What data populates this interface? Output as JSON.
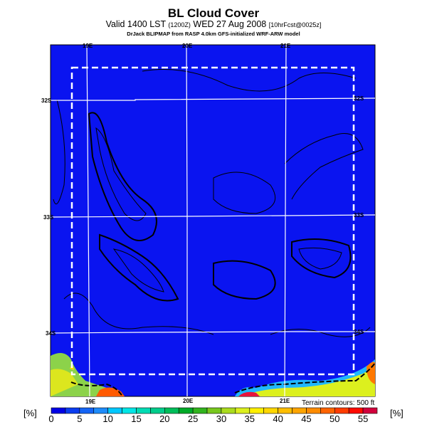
{
  "title": "BL Cloud Cover",
  "subtitle_main": "Valid 1400 LST",
  "subtitle_small1": "(1200Z)",
  "subtitle_date": "WED 27 Aug 2008",
  "subtitle_small2": "[10hrFcst@0025z]",
  "credit": "DrJack BLIPMAP from RASP 4.0km GFS-initialized WRF-ARW model",
  "terrain_note": "Terrain contours: 500 ft",
  "unit_left": "[%]",
  "unit_right": "[%]",
  "chart_data": {
    "type": "heatmap",
    "title": "BL Cloud Cover",
    "variable": "Boundary layer cloud cover",
    "units": "%",
    "lon_labels": [
      "19E",
      "20E",
      "21E"
    ],
    "lat_labels": [
      "32S",
      "33S",
      "34S"
    ],
    "colorbar": {
      "ticks": [
        "0",
        "5",
        "10",
        "15",
        "20",
        "25",
        "30",
        "35",
        "40",
        "45",
        "50",
        "55"
      ],
      "range": [
        0,
        57.5
      ],
      "step": 2.5,
      "colors": [
        "#0000e6",
        "#0a3cf0",
        "#1464f5",
        "#1e8cfa",
        "#00c8ff",
        "#00e6e6",
        "#00dcb4",
        "#00cd8c",
        "#00be5a",
        "#00aa28",
        "#32b41e",
        "#78c81e",
        "#aadc1e",
        "#dcf01e",
        "#fff000",
        "#ffd700",
        "#ffbe00",
        "#ffa500",
        "#ff8c00",
        "#ff6400",
        "#ff3c00",
        "#ff0a00",
        "#d2003c"
      ]
    },
    "field_summary": "Mostly 0% cloud cover over land; higher values (up to ~55%) along southern coast"
  }
}
